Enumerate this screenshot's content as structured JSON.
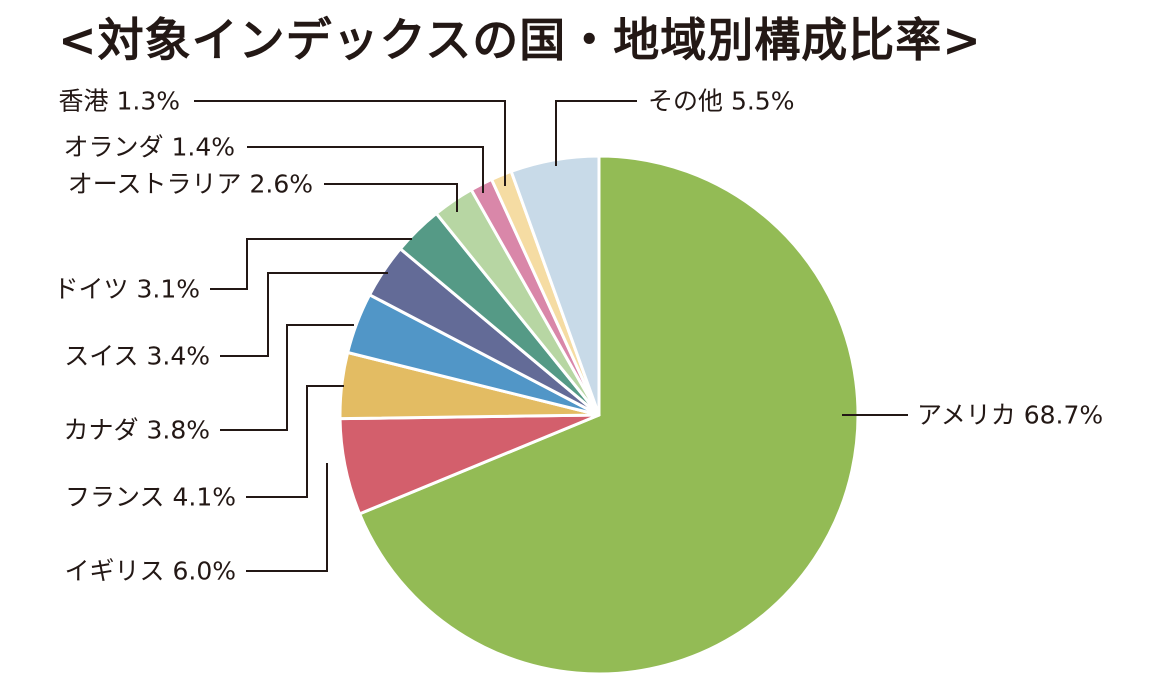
{
  "chart_data": {
    "type": "pie",
    "title": "<対象インデックスの国・地域別構成比率>",
    "slices": [
      {
        "label": "アメリカ",
        "value": 68.7,
        "display": "アメリカ 68.7%",
        "color": "#93bb55"
      },
      {
        "label": "イギリス",
        "value": 6.0,
        "display": "イギリス 6.0%",
        "color": "#d35f6c"
      },
      {
        "label": "フランス",
        "value": 4.1,
        "display": "フランス 4.1%",
        "color": "#e3bc63"
      },
      {
        "label": "カナダ",
        "value": 3.8,
        "display": "カナダ 3.8%",
        "color": "#5196c7"
      },
      {
        "label": "スイス",
        "value": 3.4,
        "display": "スイス 3.4%",
        "color": "#636b97"
      },
      {
        "label": "ドイツ",
        "value": 3.1,
        "display": "ドイツ 3.1%",
        "color": "#559a86"
      },
      {
        "label": "オーストラリア",
        "value": 2.6,
        "display": "オーストラリア 2.6%",
        "color": "#b7d6a3"
      },
      {
        "label": "オランダ",
        "value": 1.4,
        "display": "オランダ 1.4%",
        "color": "#d987a9"
      },
      {
        "label": "香港",
        "value": 1.3,
        "display": "香港 1.3%",
        "color": "#f5dca3"
      },
      {
        "label": "その他",
        "value": 5.5,
        "display": "その他 5.5%",
        "color": "#c8dae8"
      }
    ]
  }
}
